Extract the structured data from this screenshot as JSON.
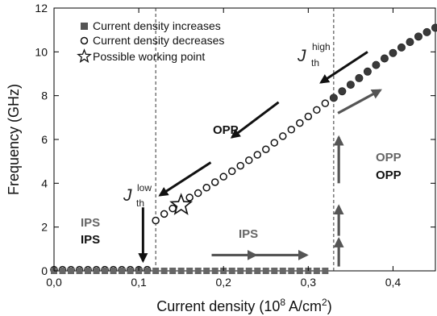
{
  "chart_data": {
    "type": "scatter",
    "xlabel": "Current density (10^8 A/cm^2)",
    "ylabel": "Frequency (GHz)",
    "xlim": [
      0,
      0.45
    ],
    "ylim": [
      0,
      12
    ],
    "xticks": [
      0.0,
      0.1,
      0.2,
      0.3,
      0.4
    ],
    "xtick_labels": [
      "0,0",
      "0,1",
      "0,2",
      "0,3",
      "0,4"
    ],
    "yticks": [
      0,
      2,
      4,
      6,
      8,
      10,
      12
    ],
    "ytick_labels": [
      "0",
      "2",
      "4",
      "6",
      "8",
      "10",
      "12"
    ],
    "grid": false,
    "legend_position": "top-left",
    "legend": [
      {
        "label": "Current density increases",
        "marker": "filled-square"
      },
      {
        "label": "Current density decreases",
        "marker": "open-circle"
      },
      {
        "label": "Possible working point",
        "marker": "star"
      }
    ],
    "series": [
      {
        "name": "Current density increases",
        "marker": "filled-square",
        "x": [
          0.0,
          0.01,
          0.02,
          0.03,
          0.04,
          0.05,
          0.06,
          0.07,
          0.08,
          0.09,
          0.1,
          0.11,
          0.12,
          0.13,
          0.14,
          0.15,
          0.16,
          0.17,
          0.18,
          0.19,
          0.2,
          0.21,
          0.22,
          0.23,
          0.24,
          0.25,
          0.26,
          0.27,
          0.28,
          0.29,
          0.3,
          0.31,
          0.32,
          0.33,
          0.34,
          0.35,
          0.36,
          0.37,
          0.38,
          0.39,
          0.4,
          0.41,
          0.42,
          0.43,
          0.44,
          0.45
        ],
        "y": [
          0,
          0,
          0,
          0,
          0,
          0,
          0,
          0,
          0,
          0,
          0,
          0,
          0,
          0,
          0,
          0,
          0,
          0,
          0,
          0,
          0,
          0,
          0,
          0,
          0,
          0,
          0,
          0,
          0,
          0,
          0,
          0,
          0,
          7.9,
          8.2,
          8.5,
          8.8,
          9.1,
          9.4,
          9.7,
          9.95,
          10.2,
          10.45,
          10.7,
          10.9,
          11.1
        ]
      },
      {
        "name": "Current density decreases",
        "marker": "open-circle",
        "x": [
          0.0,
          0.01,
          0.02,
          0.03,
          0.04,
          0.05,
          0.06,
          0.07,
          0.08,
          0.09,
          0.1,
          0.11,
          0.12,
          0.13,
          0.14,
          0.15,
          0.16,
          0.17,
          0.18,
          0.19,
          0.2,
          0.21,
          0.22,
          0.23,
          0.24,
          0.25,
          0.26,
          0.27,
          0.28,
          0.29,
          0.3,
          0.31,
          0.32
        ],
        "y": [
          0.05,
          0.05,
          0.05,
          0.05,
          0.05,
          0.05,
          0.05,
          0.05,
          0.05,
          0.05,
          0.05,
          0.05,
          2.3,
          2.6,
          2.85,
          3.1,
          3.35,
          3.55,
          3.8,
          4.05,
          4.3,
          4.55,
          4.8,
          5.05,
          5.3,
          5.55,
          5.85,
          6.15,
          6.45,
          6.75,
          7.05,
          7.35,
          7.65
        ]
      }
    ],
    "working_point": {
      "x": 0.15,
      "y": 3.0
    },
    "vlines": [
      0.12,
      0.33
    ],
    "annotations": {
      "j_low": {
        "symbol": "J",
        "super": "low",
        "sub": "th"
      },
      "j_high": {
        "symbol": "J",
        "super": "high",
        "sub": "th"
      },
      "opp_mid": "OPP",
      "opp_right_gray": "OPP",
      "opp_right_black": "OPP",
      "ips_left_gray": "IPS",
      "ips_left_black": "IPS",
      "ips_bottom": "IPS"
    },
    "arrows": [
      {
        "from": [
          0.37,
          10.0
        ],
        "to": [
          0.315,
          8.6
        ],
        "color": "#111111"
      },
      {
        "from": [
          0.265,
          7.7
        ],
        "to": [
          0.21,
          6.1
        ],
        "color": "#111111"
      },
      {
        "from": [
          0.185,
          4.95
        ],
        "to": [
          0.125,
          3.45
        ],
        "color": "#111111"
      },
      {
        "from": [
          0.105,
          2.9
        ],
        "to": [
          0.105,
          0.45
        ],
        "color": "#111111"
      },
      {
        "from": [
          0.335,
          7.2
        ],
        "to": [
          0.385,
          8.25
        ],
        "color": "#555555"
      },
      {
        "from": [
          0.336,
          4.0
        ],
        "to": [
          0.336,
          6.1
        ],
        "color": "#555555"
      },
      {
        "from": [
          0.336,
          1.6
        ],
        "to": [
          0.336,
          2.95
        ],
        "color": "#555555"
      },
      {
        "from": [
          0.336,
          0.2
        ],
        "to": [
          0.336,
          1.45
        ],
        "color": "#555555"
      },
      {
        "from": [
          0.186,
          0.72
        ],
        "to": [
          0.238,
          0.72
        ],
        "color": "#555555"
      },
      {
        "from": [
          0.238,
          0.72
        ],
        "to": [
          0.298,
          0.72
        ],
        "color": "#555555"
      }
    ]
  }
}
